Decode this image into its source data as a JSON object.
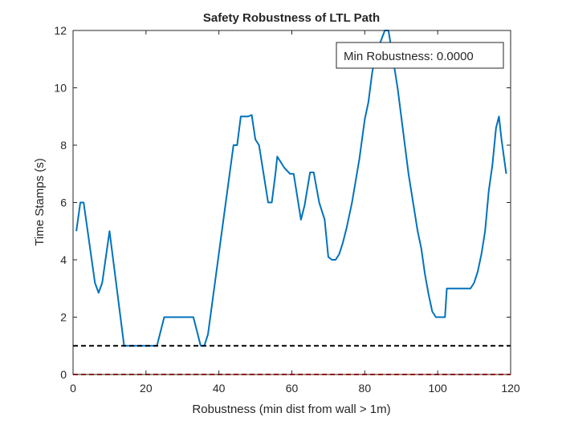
{
  "chart_data": {
    "type": "line",
    "title": "Safety Robustness of LTL Path",
    "xlabel": "Robustness (min dist from wall > 1m)",
    "ylabel": "Time Stamps (s)",
    "annotation": "Min Robustness: 0.0000",
    "xlim": [
      0,
      120
    ],
    "xticks": [
      0,
      20,
      40,
      60,
      80,
      100,
      120
    ],
    "ylim": [
      0,
      12
    ],
    "yticks": [
      0,
      2,
      4,
      6,
      8,
      10,
      12
    ],
    "series": [
      {
        "color": "#0072bd",
        "dashed": false,
        "x": [
          0.9,
          2,
          2.9,
          6,
          7,
          8,
          10,
          14,
          23,
          25,
          33,
          35,
          36,
          37,
          44,
          45,
          46,
          48,
          49,
          50,
          51,
          53.5,
          54.5,
          55.5,
          56,
          58,
          59.5,
          60.5,
          62.5,
          63.5,
          65,
          66,
          67.5,
          69,
          70,
          71,
          72,
          73,
          74,
          75,
          76.5,
          78.5,
          80,
          81,
          82,
          83,
          84,
          85.5,
          86.5,
          87.5,
          89,
          90.5,
          92,
          94.5,
          95.5,
          96.5,
          97.5,
          98.5,
          99.5,
          102,
          102.5,
          109,
          110,
          111,
          112,
          113,
          114,
          115,
          116,
          116.8,
          117.5,
          118.8
        ],
        "values": [
          5.0,
          6.0,
          6.0,
          3.2,
          2.85,
          3.2,
          5.0,
          1.0,
          1.0,
          2.0,
          2.0,
          1.0,
          1.0,
          1.4,
          8.0,
          8.0,
          9.0,
          9.0,
          9.05,
          8.2,
          8.0,
          6.0,
          6.0,
          7.0,
          7.6,
          7.2,
          7.0,
          7.0,
          5.4,
          5.9,
          7.05,
          7.05,
          6.0,
          5.4,
          4.1,
          4.0,
          4.0,
          4.2,
          4.6,
          5.1,
          6.0,
          7.5,
          8.9,
          9.5,
          10.5,
          11.2,
          11.5,
          12.0,
          12.0,
          11.2,
          10.0,
          8.5,
          7.0,
          5.0,
          4.4,
          3.5,
          2.8,
          2.2,
          2.0,
          2.0,
          3.0,
          3.0,
          3.2,
          3.6,
          4.2,
          5.0,
          6.4,
          7.3,
          8.6,
          9.0,
          8.2,
          7.0
        ]
      },
      {
        "color": "#000000",
        "dashed": true,
        "x": [
          0,
          120
        ],
        "values": [
          1,
          1
        ]
      },
      {
        "color": "#ff0000",
        "dashed": true,
        "x": [
          0,
          120
        ],
        "values": [
          0,
          0
        ]
      }
    ]
  }
}
